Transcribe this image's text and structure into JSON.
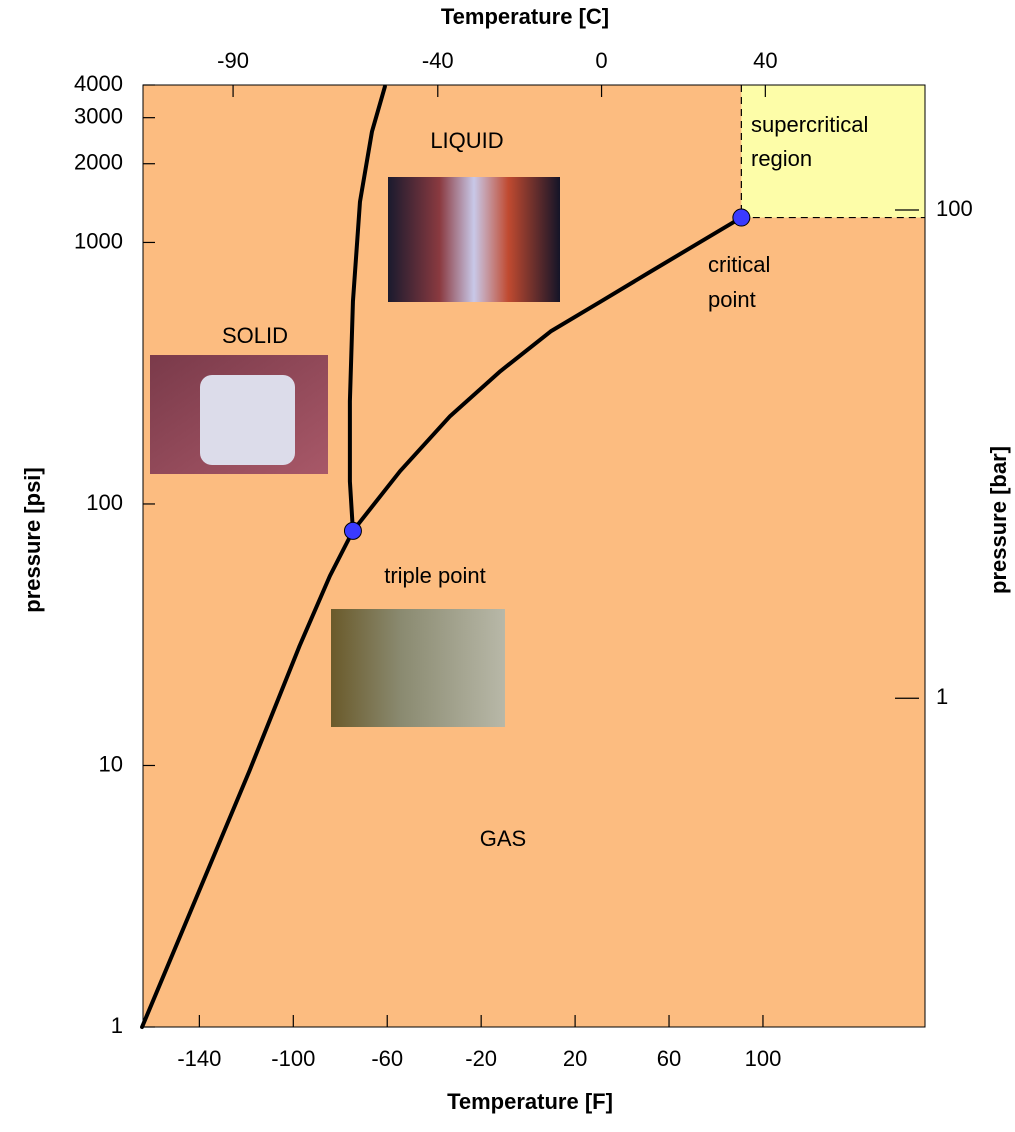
{
  "chart_data": {
    "type": "line",
    "x_label": "Temperature [F]",
    "x2_label": "Temperature [C]",
    "y_label": "pressure [psi]",
    "y2_label": "pressure [bar]",
    "xlim": [
      -164,
      169
    ],
    "xticks": [
      -140,
      -100,
      -60,
      -20,
      20,
      60,
      100
    ],
    "x2lim": [
      -112,
      79
    ],
    "x2ticks": [
      -90,
      -40,
      0,
      40
    ],
    "ylim": [
      1,
      4000
    ],
    "yticks": [
      1,
      10,
      100,
      1000,
      2000,
      3000,
      4000
    ],
    "y_scale": "log",
    "y2lim": [
      0.045,
      325
    ],
    "y2ticks": [
      1,
      100
    ],
    "grid": false,
    "plot_color": "#fcbc80",
    "region_color": "#fdfda8",
    "series": [
      {
        "color": "#000000",
        "x": [
          -164.4,
          -140,
          -118.6,
          -97.3,
          -84.4,
          -74.6,
          -54.5,
          -33.2,
          -11.8,
          9.6,
          31,
          52.3,
          73.7,
          90.8
        ],
        "values": [
          1,
          3.33,
          9.57,
          28.7,
          53.1,
          78.9,
          133.6,
          216.8,
          322,
          457,
          595,
          775,
          1009,
          1245
        ]
      },
      {
        "color": "#000000",
        "x": [
          -74.6,
          -75.9,
          -75.9,
          -74.6,
          -71.6,
          -66.5,
          -61
        ],
        "values": [
          78.9,
          122,
          247,
          595,
          1432,
          2653,
          3940
        ]
      }
    ],
    "points": [
      {
        "x": -74.6,
        "y": 78.9,
        "color": "#3a3aff"
      },
      {
        "x": 90.8,
        "y": 1245,
        "color": "#3a3aff"
      }
    ],
    "annotations": {
      "liquid": "LIQUID",
      "solid": "SOLID",
      "gas": "GAS",
      "triple": "triple point",
      "critical": [
        "critical",
        "point"
      ],
      "region": [
        "supercritical",
        "region"
      ]
    }
  }
}
